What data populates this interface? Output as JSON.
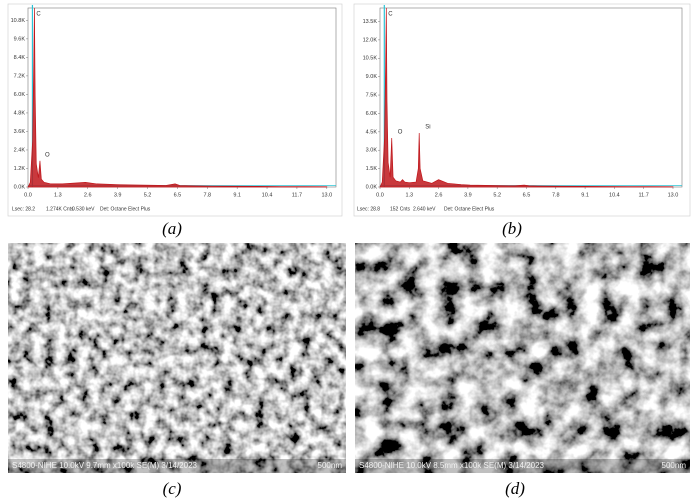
{
  "chart_data": [
    {
      "type": "line",
      "caption": "(a)",
      "x": [
        0,
        0.1,
        0.2,
        0.25,
        0.28,
        0.31,
        0.36,
        0.45,
        0.52,
        0.58,
        0.7,
        1.0,
        1.5,
        2.0,
        2.5,
        3.0,
        4,
        5,
        6,
        6.4,
        6.6,
        7,
        8,
        9,
        10,
        11,
        12,
        13
      ],
      "series": [
        {
          "color": "#c0161b",
          "values": [
            0,
            0.3,
            3,
            8,
            11.6,
            6,
            1.5,
            0.6,
            1.7,
            0.5,
            0.3,
            0.2,
            0.2,
            0.25,
            0.3,
            0.2,
            0.15,
            0.12,
            0.1,
            0.2,
            0.1,
            0.08,
            0.06,
            0.05,
            0.04,
            0.03,
            0.03,
            0.02
          ]
        }
      ],
      "annotations": [
        "C",
        "O"
      ],
      "xlim": [
        0,
        13.4
      ],
      "ylim": [
        0,
        11.6
      ],
      "xticks": [
        {
          "value": 0,
          "label": "0.0"
        },
        1.3,
        2.6,
        3.9,
        5.2,
        6.5,
        7.8,
        9.1,
        10.4,
        11.7,
        {
          "value": 13,
          "label": "13.0"
        }
      ],
      "yticks": [
        {
          "value": 0,
          "label": "0.0K"
        },
        {
          "value": 1.2,
          "label": "1.2K"
        },
        {
          "value": 2.4,
          "label": "2.4K"
        },
        {
          "value": 3.6,
          "label": "3.6K"
        },
        {
          "value": 4.8,
          "label": "4.8K"
        },
        {
          "value": 6,
          "label": "6.0K"
        },
        {
          "value": 7.2,
          "label": "7.2K"
        },
        {
          "value": 8.4,
          "label": "8.4K"
        },
        {
          "value": 9.6,
          "label": "9.6K"
        },
        {
          "value": 10.8,
          "label": "10.8K"
        }
      ],
      "footer": [
        "Lsec: 28.2",
        "1.274K Cnts",
        "0.530 keV",
        "Det: Octane Elect Plus"
      ]
    },
    {
      "type": "line",
      "caption": "(b)",
      "x": [
        0,
        0.1,
        0.2,
        0.25,
        0.28,
        0.31,
        0.36,
        0.45,
        0.52,
        0.58,
        0.7,
        0.9,
        1.0,
        1.1,
        1.3,
        1.6,
        1.7,
        1.74,
        1.78,
        1.9,
        2.1,
        2.3,
        2.6,
        3.0,
        3.3,
        3.6,
        4,
        5,
        6,
        6.4,
        6.6,
        7,
        8,
        9,
        10,
        11,
        12,
        13
      ],
      "series": [
        {
          "color": "#c0161b",
          "values": [
            0,
            0.4,
            4,
            10,
            14.6,
            7,
            2,
            0.8,
            4,
            0.8,
            0.5,
            0.4,
            0.6,
            0.4,
            0.35,
            0.4,
            1.5,
            4.4,
            1.5,
            0.5,
            0.4,
            0.3,
            0.6,
            0.3,
            0.25,
            0.2,
            0.15,
            0.12,
            0.1,
            0.15,
            0.1,
            0.08,
            0.06,
            0.05,
            0.04,
            0.03,
            0.03,
            0.02
          ]
        }
      ],
      "annotations": [
        "C",
        "O",
        "Si"
      ],
      "xlim": [
        0,
        13.4
      ],
      "ylim": [
        0,
        14.6
      ],
      "xticks": [
        {
          "value": 0,
          "label": "0.0"
        },
        1.3,
        2.6,
        3.9,
        5.2,
        6.5,
        7.8,
        9.1,
        10.4,
        11.7,
        {
          "value": 13,
          "label": "13.0"
        }
      ],
      "yticks": [
        {
          "value": 0,
          "label": "0.0K"
        },
        {
          "value": 1.5,
          "label": "1.5K"
        },
        {
          "value": 3,
          "label": "3.0K"
        },
        {
          "value": 4.5,
          "label": "4.5K"
        },
        {
          "value": 6,
          "label": "6.0K"
        },
        {
          "value": 7.5,
          "label": "7.5K"
        },
        {
          "value": 9,
          "label": "9.0K"
        },
        {
          "value": 10.5,
          "label": "10.5K"
        },
        {
          "value": 12,
          "label": "12.0K"
        },
        {
          "value": 13.5,
          "label": "13.5K"
        }
      ],
      "footer": [
        "Lsec: 28.8",
        "152 Cnts",
        "2.640 keV",
        "Det: Octane Elect Plus"
      ]
    }
  ],
  "images": [
    {
      "caption": "(c)",
      "info": "S4800-NIHE 10.0kV 9.7mm x100k SE(M) 3/14/2023",
      "scale": "500nm"
    },
    {
      "caption": "(d)",
      "info": "S4800-NIHE 10.0kV 8.5mm x100k SE(M) 3/14/2023",
      "scale": "500nm"
    }
  ]
}
